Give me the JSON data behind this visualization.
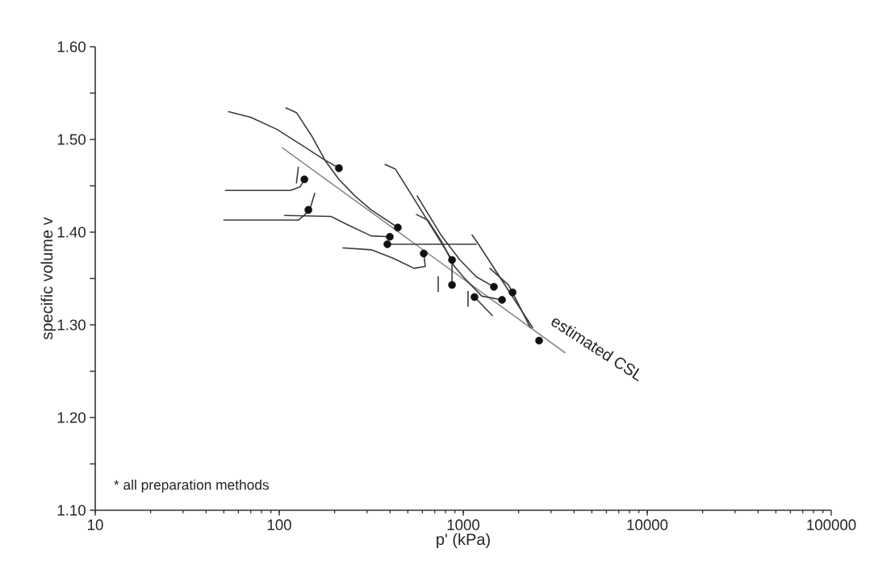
{
  "chart_data": {
    "type": "line",
    "xlabel": "p' (kPa)",
    "ylabel": "specific volume v",
    "log": "x",
    "xlim": [
      10,
      100000
    ],
    "xticks": [
      10,
      100,
      1000,
      10000,
      100000
    ],
    "ylim": [
      1.1,
      1.6
    ],
    "yticks": [
      {
        "value": 1.1,
        "label": "1.10"
      },
      {
        "value": 1.15,
        "label": null
      },
      {
        "value": 1.2,
        "label": "1.20"
      },
      {
        "value": 1.25,
        "label": null
      },
      {
        "value": 1.3,
        "label": "1.30"
      },
      {
        "value": 1.35,
        "label": null
      },
      {
        "value": 1.4,
        "label": "1.40"
      },
      {
        "value": 1.45,
        "label": null
      },
      {
        "value": 1.5,
        "label": "1.50"
      },
      {
        "value": 1.55,
        "label": null
      },
      {
        "value": 1.6,
        "label": "1.60"
      }
    ],
    "annotations": [
      "* all preparation methods",
      "estimated CSL"
    ],
    "series": [
      {
        "color": "#8a8a8a",
        "x": [
          104,
          3570
        ],
        "values": [
          1.491,
          1.27
        ]
      },
      {
        "color": "#3c3c3c",
        "x": [
          53,
          70,
          97,
          137,
          173,
          211
        ],
        "values": [
          1.53,
          1.524,
          1.511,
          1.492,
          1.479,
          1.469
        ]
      },
      {
        "color": "#3c3c3c",
        "x": [
          109,
          124,
          151,
          178,
          211,
          258,
          316,
          441
        ],
        "values": [
          1.534,
          1.529,
          1.503,
          1.477,
          1.457,
          1.439,
          1.424,
          1.405
        ]
      },
      {
        "color": "#3c3c3c",
        "x": [
          51,
          115,
          130,
          137
        ],
        "values": [
          1.445,
          1.445,
          1.449,
          1.457
        ]
      },
      {
        "color": "#3c3c3c",
        "x": [
          124,
          127
        ],
        "values": [
          1.453,
          1.47
        ]
      },
      {
        "color": "#3c3c3c",
        "x": [
          50,
          127,
          138,
          144
        ],
        "values": [
          1.413,
          1.413,
          1.419,
          1.424
        ]
      },
      {
        "color": "#3c3c3c",
        "x": [
          148,
          156
        ],
        "values": [
          1.427,
          1.442
        ]
      },
      {
        "color": "#3c3c3c",
        "x": [
          107,
          191,
          241,
          316,
          399
        ],
        "values": [
          1.418,
          1.417,
          1.407,
          1.396,
          1.395
        ]
      },
      {
        "color": "#3c3c3c",
        "x": [
          387,
          1175
        ],
        "values": [
          1.387,
          1.387
        ]
      },
      {
        "color": "#3c3c3c",
        "x": [
          1117,
          1211,
          2382
        ],
        "values": [
          1.397,
          1.387,
          1.297
        ]
      },
      {
        "color": "#3c3c3c",
        "x": [
          222,
          316,
          415,
          540,
          622,
          610
        ],
        "values": [
          1.383,
          1.381,
          1.372,
          1.361,
          1.363,
          1.377
        ]
      },
      {
        "color": "#3c3c3c",
        "x": [
          376,
          428,
          540,
          710,
          869,
          869
        ],
        "values": [
          1.473,
          1.468,
          1.436,
          1.398,
          1.37,
          1.343
        ]
      },
      {
        "color": "#3c3c3c",
        "x": [
          562,
          762,
          960,
          1175,
          1468
        ],
        "values": [
          1.439,
          1.396,
          1.37,
          1.352,
          1.341
        ]
      },
      {
        "color": "#3c3c3c",
        "x": [
          557,
          641,
          762,
          895,
          1030,
          1262,
          1625
        ],
        "values": [
          1.419,
          1.413,
          1.39,
          1.363,
          1.349,
          1.331,
          1.327
        ]
      },
      {
        "color": "#3c3c3c",
        "x": [
          1396,
          1762,
          1854,
          2312
        ],
        "values": [
          1.361,
          1.343,
          1.335,
          1.297
        ]
      },
      {
        "color": "#3c3c3c",
        "x": [
          1151,
          1440
        ],
        "values": [
          1.33,
          1.31
        ]
      },
      {
        "color": "#3c3c3c",
        "x": [
          1062,
          1062
        ],
        "values": [
          1.32,
          1.336
        ]
      },
      {
        "color": "#3c3c3c",
        "x": [
          731,
          731
        ],
        "values": [
          1.336,
          1.352
        ]
      },
      {
        "type": "scatter",
        "marker": "circle",
        "color": "#111111",
        "x": [
          211,
          441,
          137,
          144,
          399,
          387,
          610,
          869,
          869,
          1468,
          1625,
          1854,
          1151,
          2583
        ],
        "values": [
          1.469,
          1.405,
          1.457,
          1.424,
          1.395,
          1.387,
          1.377,
          1.37,
          1.343,
          1.341,
          1.327,
          1.335,
          1.33,
          1.283
        ]
      }
    ]
  }
}
